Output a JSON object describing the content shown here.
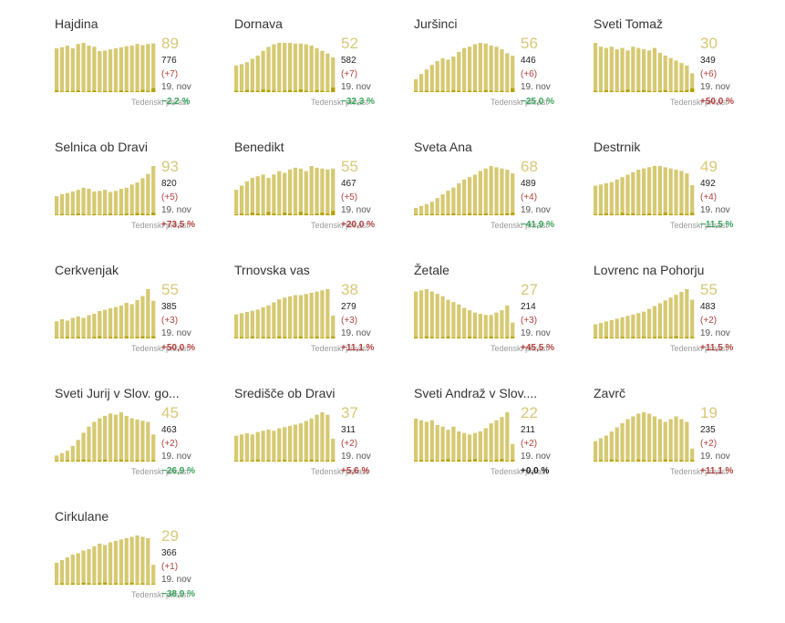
{
  "colors": {
    "bar": "#d6c972",
    "bar_dark": "#b5a100",
    "big": "#d7c878",
    "pos": "#b0413e",
    "neg": "#3aa35c",
    "zero": "#222222",
    "label": "#9a9a9a"
  },
  "growth_label": "Tedenski prirast",
  "municipalities": [
    {
      "name": "Hajdina",
      "active": "89",
      "total": "776",
      "delta": "(+7)",
      "date": "19. nov",
      "growth": "−2,2 %",
      "growth_sign": "neg",
      "chart_data": {
        "type": "bar",
        "values": [
          80,
          82,
          85,
          80,
          88,
          90,
          85,
          83,
          75,
          76,
          78,
          80,
          82,
          84,
          85,
          88,
          86,
          88,
          89
        ],
        "new_cases": [
          3,
          1,
          2,
          2,
          3,
          1,
          2,
          3,
          1,
          2,
          2,
          1,
          3,
          2,
          1,
          2,
          4,
          2,
          7
        ]
      }
    },
    {
      "name": "Dornava",
      "active": "52",
      "total": "582",
      "delta": "(+7)",
      "date": "19. nov",
      "growth": "−32,3 %",
      "growth_sign": "neg",
      "chart_data": {
        "type": "bar",
        "values": [
          40,
          42,
          45,
          50,
          55,
          62,
          68,
          72,
          74,
          74,
          74,
          73,
          73,
          72,
          70,
          66,
          62,
          58,
          52
        ],
        "new_cases": [
          2,
          1,
          3,
          2,
          2,
          4,
          3,
          2,
          1,
          2,
          3,
          2,
          4,
          2,
          1,
          3,
          2,
          1,
          7
        ]
      }
    },
    {
      "name": "Juršinci",
      "active": "56",
      "total": "446",
      "delta": "(+6)",
      "date": "19. nov",
      "growth": "−25,0 %",
      "growth_sign": "neg",
      "chart_data": {
        "type": "bar",
        "values": [
          20,
          28,
          35,
          42,
          48,
          52,
          50,
          55,
          62,
          68,
          70,
          74,
          76,
          75,
          72,
          70,
          66,
          60,
          56
        ],
        "new_cases": [
          1,
          1,
          2,
          1,
          2,
          2,
          1,
          3,
          2,
          1,
          2,
          2,
          1,
          3,
          2,
          1,
          2,
          1,
          6
        ]
      }
    },
    {
      "name": "Sveti Tomaž",
      "active": "30",
      "total": "349",
      "delta": "(+6)",
      "date": "19. nov",
      "growth": "+50,0 %",
      "growth_sign": "pos",
      "chart_data": {
        "type": "bar",
        "values": [
          78,
          72,
          70,
          72,
          68,
          70,
          66,
          72,
          70,
          68,
          66,
          70,
          62,
          58,
          54,
          50,
          46,
          42,
          30
        ],
        "new_cases": [
          2,
          1,
          3,
          2,
          1,
          2,
          4,
          1,
          2,
          3,
          2,
          1,
          2,
          3,
          1,
          2,
          2,
          3,
          6
        ]
      }
    },
    {
      "name": "Selnica ob Dravi",
      "active": "93",
      "total": "820",
      "delta": "(+5)",
      "date": "19. nov",
      "growth": "+73,5 %",
      "growth_sign": "pos",
      "chart_data": {
        "type": "bar",
        "values": [
          36,
          40,
          42,
          45,
          48,
          52,
          50,
          45,
          46,
          48,
          44,
          46,
          50,
          52,
          58,
          62,
          70,
          78,
          93
        ],
        "new_cases": [
          1,
          2,
          1,
          2,
          3,
          2,
          1,
          2,
          1,
          2,
          3,
          1,
          2,
          3,
          2,
          4,
          3,
          2,
          5
        ]
      }
    },
    {
      "name": "Benedikt",
      "active": "55",
      "total": "467",
      "delta": "(+5)",
      "date": "19. nov",
      "growth": "+20,0 %",
      "growth_sign": "pos",
      "chart_data": {
        "type": "bar",
        "values": [
          30,
          35,
          40,
          44,
          46,
          48,
          44,
          48,
          52,
          50,
          54,
          56,
          55,
          52,
          58,
          56,
          55,
          54,
          55
        ],
        "new_cases": [
          1,
          2,
          1,
          3,
          2,
          1,
          4,
          2,
          1,
          3,
          2,
          1,
          4,
          2,
          1,
          2,
          3,
          2,
          5
        ]
      }
    },
    {
      "name": "Sveta Ana",
      "active": "68",
      "total": "489",
      "delta": "(+4)",
      "date": "19. nov",
      "growth": "−41,9 %",
      "growth_sign": "neg",
      "chart_data": {
        "type": "bar",
        "values": [
          12,
          15,
          18,
          22,
          28,
          34,
          40,
          45,
          52,
          58,
          62,
          66,
          72,
          76,
          80,
          78,
          76,
          74,
          68
        ],
        "new_cases": [
          1,
          1,
          1,
          2,
          1,
          2,
          2,
          3,
          1,
          2,
          3,
          2,
          2,
          3,
          1,
          2,
          2,
          3,
          4
        ]
      }
    },
    {
      "name": "Destrnik",
      "active": "49",
      "total": "492",
      "delta": "(+4)",
      "date": "19. nov",
      "growth": "−11,5 %",
      "growth_sign": "neg",
      "chart_data": {
        "type": "bar",
        "values": [
          48,
          50,
          52,
          54,
          58,
          62,
          66,
          70,
          74,
          76,
          78,
          80,
          80,
          78,
          76,
          74,
          72,
          68,
          49
        ],
        "new_cases": [
          1,
          2,
          3,
          2,
          1,
          4,
          2,
          3,
          1,
          2,
          3,
          1,
          2,
          4,
          2,
          1,
          3,
          2,
          4
        ]
      }
    },
    {
      "name": "Cerkvenjak",
      "active": "55",
      "total": "385",
      "delta": "(+3)",
      "date": "19. nov",
      "growth": "+50,0 %",
      "growth_sign": "pos",
      "chart_data": {
        "type": "bar",
        "values": [
          25,
          28,
          26,
          30,
          32,
          30,
          34,
          36,
          40,
          42,
          44,
          46,
          48,
          52,
          50,
          56,
          62,
          72,
          55
        ],
        "new_cases": [
          1,
          1,
          2,
          1,
          2,
          1,
          1,
          2,
          3,
          1,
          2,
          2,
          1,
          3,
          1,
          2,
          3,
          2,
          3
        ]
      }
    },
    {
      "name": "Trnovska vas",
      "active": "38",
      "total": "279",
      "delta": "(+3)",
      "date": "19. nov",
      "growth": "+11,1 %",
      "growth_sign": "pos",
      "chart_data": {
        "type": "bar",
        "values": [
          40,
          42,
          44,
          46,
          48,
          52,
          55,
          60,
          65,
          68,
          70,
          72,
          72,
          74,
          76,
          78,
          80,
          82,
          38
        ],
        "new_cases": [
          1,
          2,
          1,
          3,
          1,
          2,
          2,
          1,
          3,
          2,
          1,
          2,
          3,
          1,
          2,
          3,
          1,
          2,
          3
        ]
      }
    },
    {
      "name": "Žetale",
      "active": "27",
      "total": "214",
      "delta": "(+3)",
      "date": "19. nov",
      "growth": "+45,5 %",
      "growth_sign": "pos",
      "chart_data": {
        "type": "bar",
        "values": [
          80,
          82,
          84,
          80,
          76,
          72,
          66,
          62,
          58,
          52,
          48,
          44,
          42,
          40,
          40,
          44,
          48,
          56,
          27
        ],
        "new_cases": [
          2,
          1,
          3,
          2,
          1,
          2,
          3,
          1,
          2,
          1,
          3,
          2,
          1,
          2,
          3,
          2,
          1,
          2,
          3
        ]
      }
    },
    {
      "name": "Lovrenc na Pohorju",
      "active": "55",
      "total": "483",
      "delta": "(+2)",
      "date": "19. nov",
      "growth": "+11,5 %",
      "growth_sign": "pos",
      "chart_data": {
        "type": "bar",
        "values": [
          20,
          22,
          24,
          26,
          28,
          30,
          32,
          34,
          36,
          38,
          42,
          46,
          50,
          54,
          58,
          62,
          66,
          70,
          55
        ],
        "new_cases": [
          1,
          1,
          2,
          1,
          1,
          2,
          1,
          2,
          1,
          2,
          1,
          2,
          2,
          1,
          2,
          3,
          1,
          2,
          2
        ]
      }
    },
    {
      "name": "Sveti Jurij v Slov. go...",
      "active": "45",
      "total": "463",
      "delta": "(+2)",
      "date": "19. nov",
      "growth": "−26,9 %",
      "growth_sign": "neg",
      "chart_data": {
        "type": "bar",
        "values": [
          10,
          14,
          18,
          26,
          36,
          48,
          58,
          66,
          72,
          76,
          80,
          78,
          82,
          76,
          72,
          70,
          68,
          66,
          45
        ],
        "new_cases": [
          1,
          1,
          2,
          1,
          2,
          3,
          2,
          1,
          2,
          3,
          1,
          2,
          3,
          2,
          1,
          2,
          2,
          1,
          2
        ]
      }
    },
    {
      "name": "Središče ob Dravi",
      "active": "37",
      "total": "311",
      "delta": "(+2)",
      "date": "19. nov",
      "growth": "+5,6 %",
      "growth_sign": "pos",
      "chart_data": {
        "type": "bar",
        "values": [
          42,
          44,
          46,
          44,
          48,
          50,
          52,
          50,
          54,
          56,
          58,
          60,
          62,
          66,
          70,
          76,
          80,
          76,
          37
        ],
        "new_cases": [
          1,
          2,
          1,
          2,
          3,
          1,
          2,
          1,
          2,
          3,
          1,
          2,
          1,
          2,
          3,
          2,
          1,
          2,
          2
        ]
      }
    },
    {
      "name": "Sveti Andraž v Slov....",
      "active": "22",
      "total": "211",
      "delta": "(+2)",
      "date": "19. nov",
      "growth": "+0,0 %",
      "growth_sign": "zero",
      "chart_data": {
        "type": "bar",
        "values": [
          54,
          52,
          50,
          52,
          46,
          44,
          40,
          44,
          38,
          36,
          34,
          36,
          38,
          42,
          48,
          52,
          56,
          62,
          22
        ],
        "new_cases": [
          1,
          2,
          1,
          2,
          1,
          2,
          3,
          1,
          2,
          1,
          2,
          3,
          1,
          2,
          1,
          2,
          3,
          1,
          2
        ]
      }
    },
    {
      "name": "Zavrč",
      "active": "19",
      "total": "235",
      "delta": "(+2)",
      "date": "19. nov",
      "growth": "+11,1 %",
      "growth_sign": "pos",
      "chart_data": {
        "type": "bar",
        "values": [
          30,
          34,
          38,
          44,
          50,
          56,
          62,
          66,
          70,
          72,
          70,
          66,
          62,
          58,
          62,
          66,
          62,
          58,
          19
        ],
        "new_cases": [
          1,
          2,
          1,
          3,
          2,
          1,
          2,
          1,
          3,
          2,
          1,
          2,
          1,
          3,
          2,
          1,
          2,
          1,
          2
        ]
      }
    },
    {
      "name": "Cirkulane",
      "active": "29",
      "total": "366",
      "delta": "(+1)",
      "date": "19. nov",
      "growth": "−38,9 %",
      "growth_sign": "neg",
      "chart_data": {
        "type": "bar",
        "values": [
          32,
          36,
          40,
          44,
          46,
          50,
          52,
          56,
          60,
          58,
          62,
          64,
          66,
          68,
          70,
          72,
          70,
          68,
          29
        ],
        "new_cases": [
          1,
          2,
          1,
          2,
          1,
          3,
          2,
          1,
          2,
          3,
          1,
          2,
          1,
          2,
          3,
          1,
          2,
          1,
          1
        ]
      }
    }
  ]
}
